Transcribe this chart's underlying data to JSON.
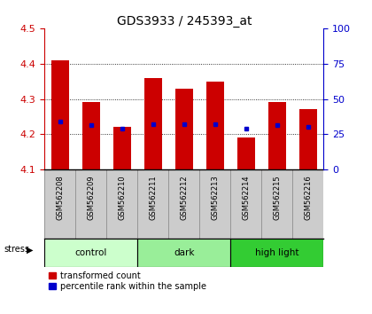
{
  "title": "GDS3933 / 245393_at",
  "samples": [
    "GSM562208",
    "GSM562209",
    "GSM562210",
    "GSM562211",
    "GSM562212",
    "GSM562213",
    "GSM562214",
    "GSM562215",
    "GSM562216"
  ],
  "bar_tops": [
    4.41,
    4.29,
    4.22,
    4.36,
    4.33,
    4.35,
    4.19,
    4.29,
    4.27
  ],
  "bar_base": 4.1,
  "percentile_values": [
    4.235,
    4.225,
    4.215,
    4.228,
    4.228,
    4.228,
    4.215,
    4.225,
    4.22
  ],
  "ylim_left": [
    4.1,
    4.5
  ],
  "ylim_right": [
    0,
    100
  ],
  "yticks_left": [
    4.1,
    4.2,
    4.3,
    4.4,
    4.5
  ],
  "yticks_right": [
    0,
    25,
    50,
    75,
    100
  ],
  "groups": [
    {
      "label": "control",
      "start": 0,
      "end": 3,
      "color": "#ccffcc"
    },
    {
      "label": "dark",
      "start": 3,
      "end": 6,
      "color": "#99ee99"
    },
    {
      "label": "high light",
      "start": 6,
      "end": 9,
      "color": "#33cc33"
    }
  ],
  "stress_label": "stress",
  "bar_color": "#cc0000",
  "percentile_color": "#0000cc",
  "bar_width": 0.55,
  "grid_color": "black",
  "label_color_left": "#cc0000",
  "label_color_right": "#0000cc",
  "tick_label_bg": "#cccccc",
  "legend_red_label": "transformed count",
  "legend_blue_label": "percentile rank within the sample"
}
